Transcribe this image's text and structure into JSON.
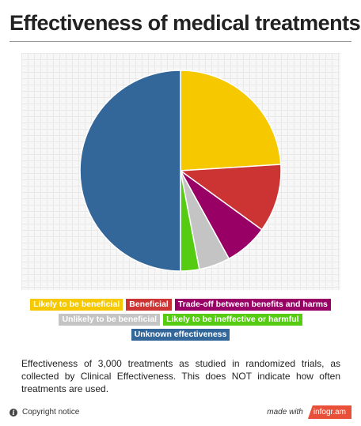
{
  "title": "Effectiveness of medical treatments",
  "chart_data": {
    "type": "pie",
    "title": "Effectiveness of medical treatments",
    "start_angle_deg": 0,
    "direction": "clockwise",
    "slices": [
      {
        "label": "Likely to be beneficial",
        "value": 24,
        "color": "#f5c800"
      },
      {
        "label": "Beneficial",
        "value": 11,
        "color": "#cc3333"
      },
      {
        "label": "Trade-off between benefits and harms",
        "value": 7,
        "color": "#990066"
      },
      {
        "label": "Unlikely to be beneficial",
        "value": 5,
        "color": "#c4c4c4"
      },
      {
        "label": "Likely to be ineffective or harmful",
        "value": 3,
        "color": "#55cc11"
      },
      {
        "label": "Unknown effectiveness",
        "value": 50,
        "color": "#336699"
      }
    ],
    "legend_position": "bottom",
    "grid": false
  },
  "legend_rows": [
    [
      0,
      1,
      2
    ],
    [
      3,
      4
    ],
    [
      5
    ]
  ],
  "caption": "Effectiveness of 3,000 treatments as studied in randomized trials, as collected by Clinical Effectiveness. This does NOT indicate how often treatments are used.",
  "footer": {
    "copyright_label": "Copyright notice",
    "info_icon": "i",
    "made_with_label": "made with",
    "brand_label": "infogr.am"
  }
}
